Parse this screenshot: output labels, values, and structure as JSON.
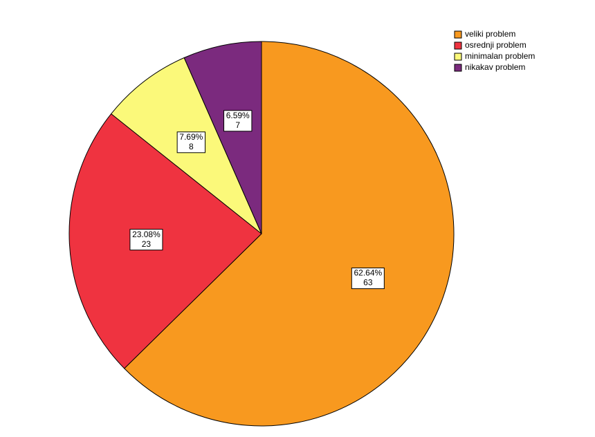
{
  "chart_data": {
    "type": "pie",
    "categories": [
      "veliki problem",
      "osrednji problem",
      "minimalan problem",
      "nikakav problem"
    ],
    "values": [
      62.64,
      23.08,
      7.69,
      6.59
    ],
    "value_labels": [
      "62.64%",
      "23.08%",
      "7.69%",
      "6.59%"
    ],
    "counts": [
      63,
      23,
      8,
      7
    ],
    "colors": [
      "#f8991f",
      "#ef3340",
      "#fbf97a",
      "#7b2a7e"
    ],
    "legend": "top-right"
  }
}
